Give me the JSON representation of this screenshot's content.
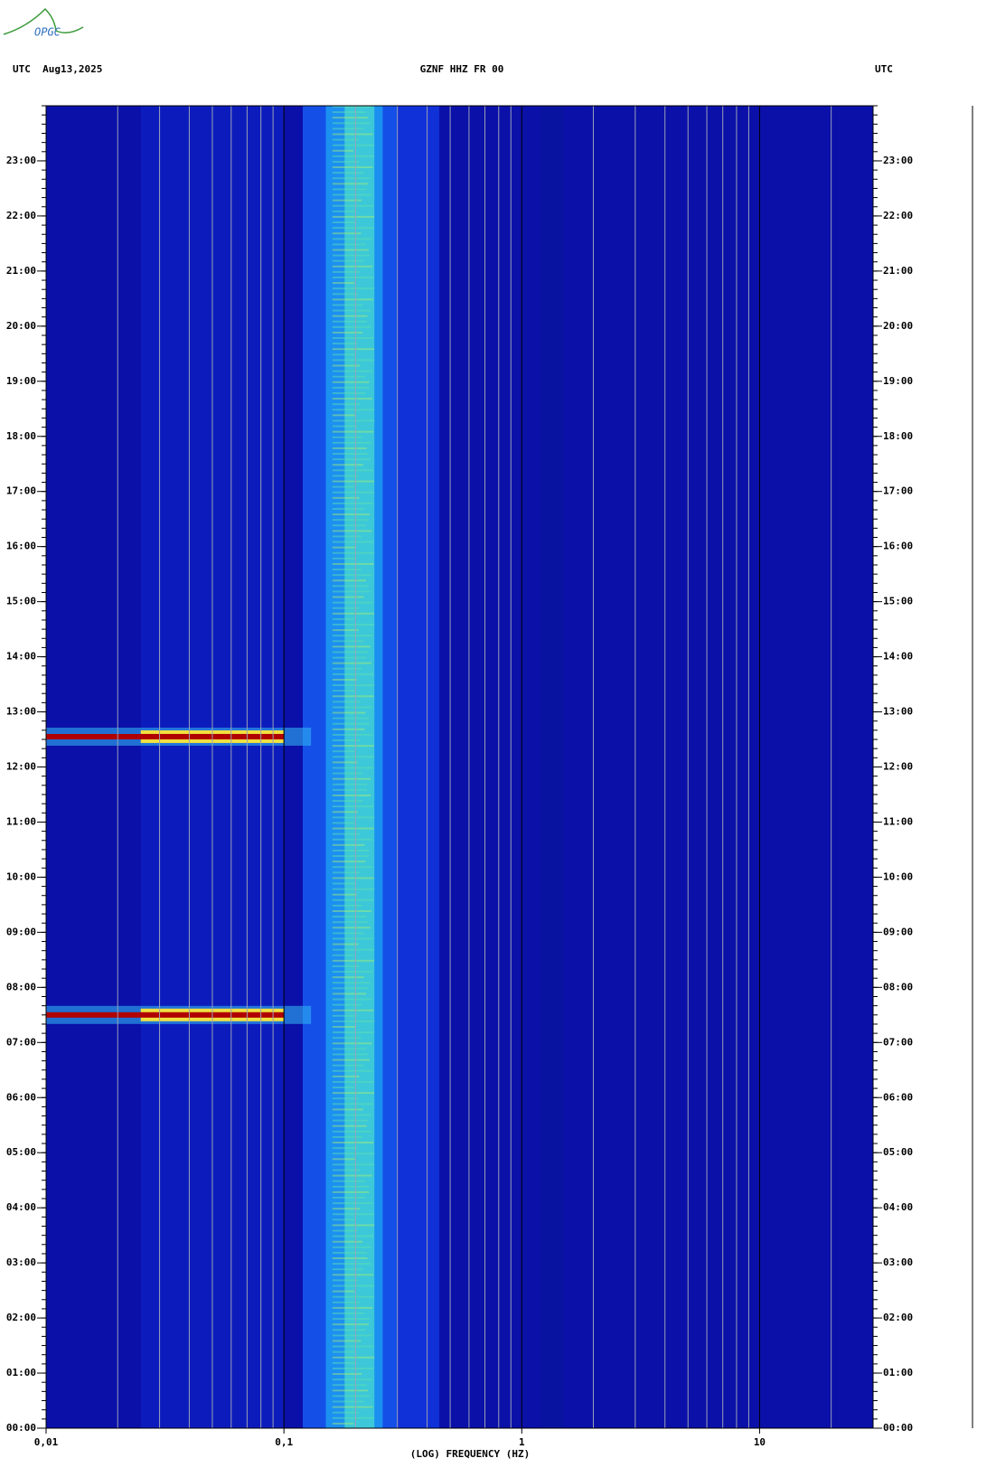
{
  "logo": "OPGC",
  "chart_data": {
    "type": "spectrogram",
    "title": "GZNF HHZ FR 00",
    "left_label": "UTC  Aug13,2025",
    "right_label": "UTC",
    "x_label": "(LOG) FREQUENCY (HZ)",
    "x_log": true,
    "xlim": [
      0.01,
      30
    ],
    "xticks": [
      {
        "value": 0.01,
        "label": "0,01"
      },
      {
        "value": 0.1,
        "label": "0,1"
      },
      1,
      10
    ],
    "minor_xticks": [
      0.02,
      0.03,
      0.04,
      0.05,
      0.06,
      0.07,
      0.08,
      0.09,
      0.2,
      0.3,
      0.4,
      0.5,
      0.6,
      0.7,
      0.8,
      0.9,
      2,
      3,
      4,
      5,
      6,
      7,
      8,
      9,
      20
    ],
    "ylim": [
      0,
      24
    ],
    "yticks": [
      {
        "value": 0,
        "label": "00:00"
      },
      {
        "value": 1,
        "label": "01:00"
      },
      {
        "value": 2,
        "label": "02:00"
      },
      {
        "value": 3,
        "label": "03:00"
      },
      {
        "value": 4,
        "label": "04:00"
      },
      {
        "value": 5,
        "label": "05:00"
      },
      {
        "value": 6,
        "label": "06:00"
      },
      {
        "value": 7,
        "label": "07:00"
      },
      {
        "value": 8,
        "label": "08:00"
      },
      {
        "value": 9,
        "label": "09:00"
      },
      {
        "value": 10,
        "label": "10:00"
      },
      {
        "value": 11,
        "label": "11:00"
      },
      {
        "value": 12,
        "label": "12:00"
      },
      {
        "value": 13,
        "label": "13:00"
      },
      {
        "value": 14,
        "label": "14:00"
      },
      {
        "value": 15,
        "label": "15:00"
      },
      {
        "value": 16,
        "label": "16:00"
      },
      {
        "value": 17,
        "label": "17:00"
      },
      {
        "value": 18,
        "label": "18:00"
      },
      {
        "value": 19,
        "label": "19:00"
      },
      {
        "value": 20,
        "label": "20:00"
      },
      {
        "value": 21,
        "label": "21:00"
      },
      {
        "value": 22,
        "label": "22:00"
      },
      {
        "value": 23,
        "label": "23:00"
      }
    ]
  }
}
